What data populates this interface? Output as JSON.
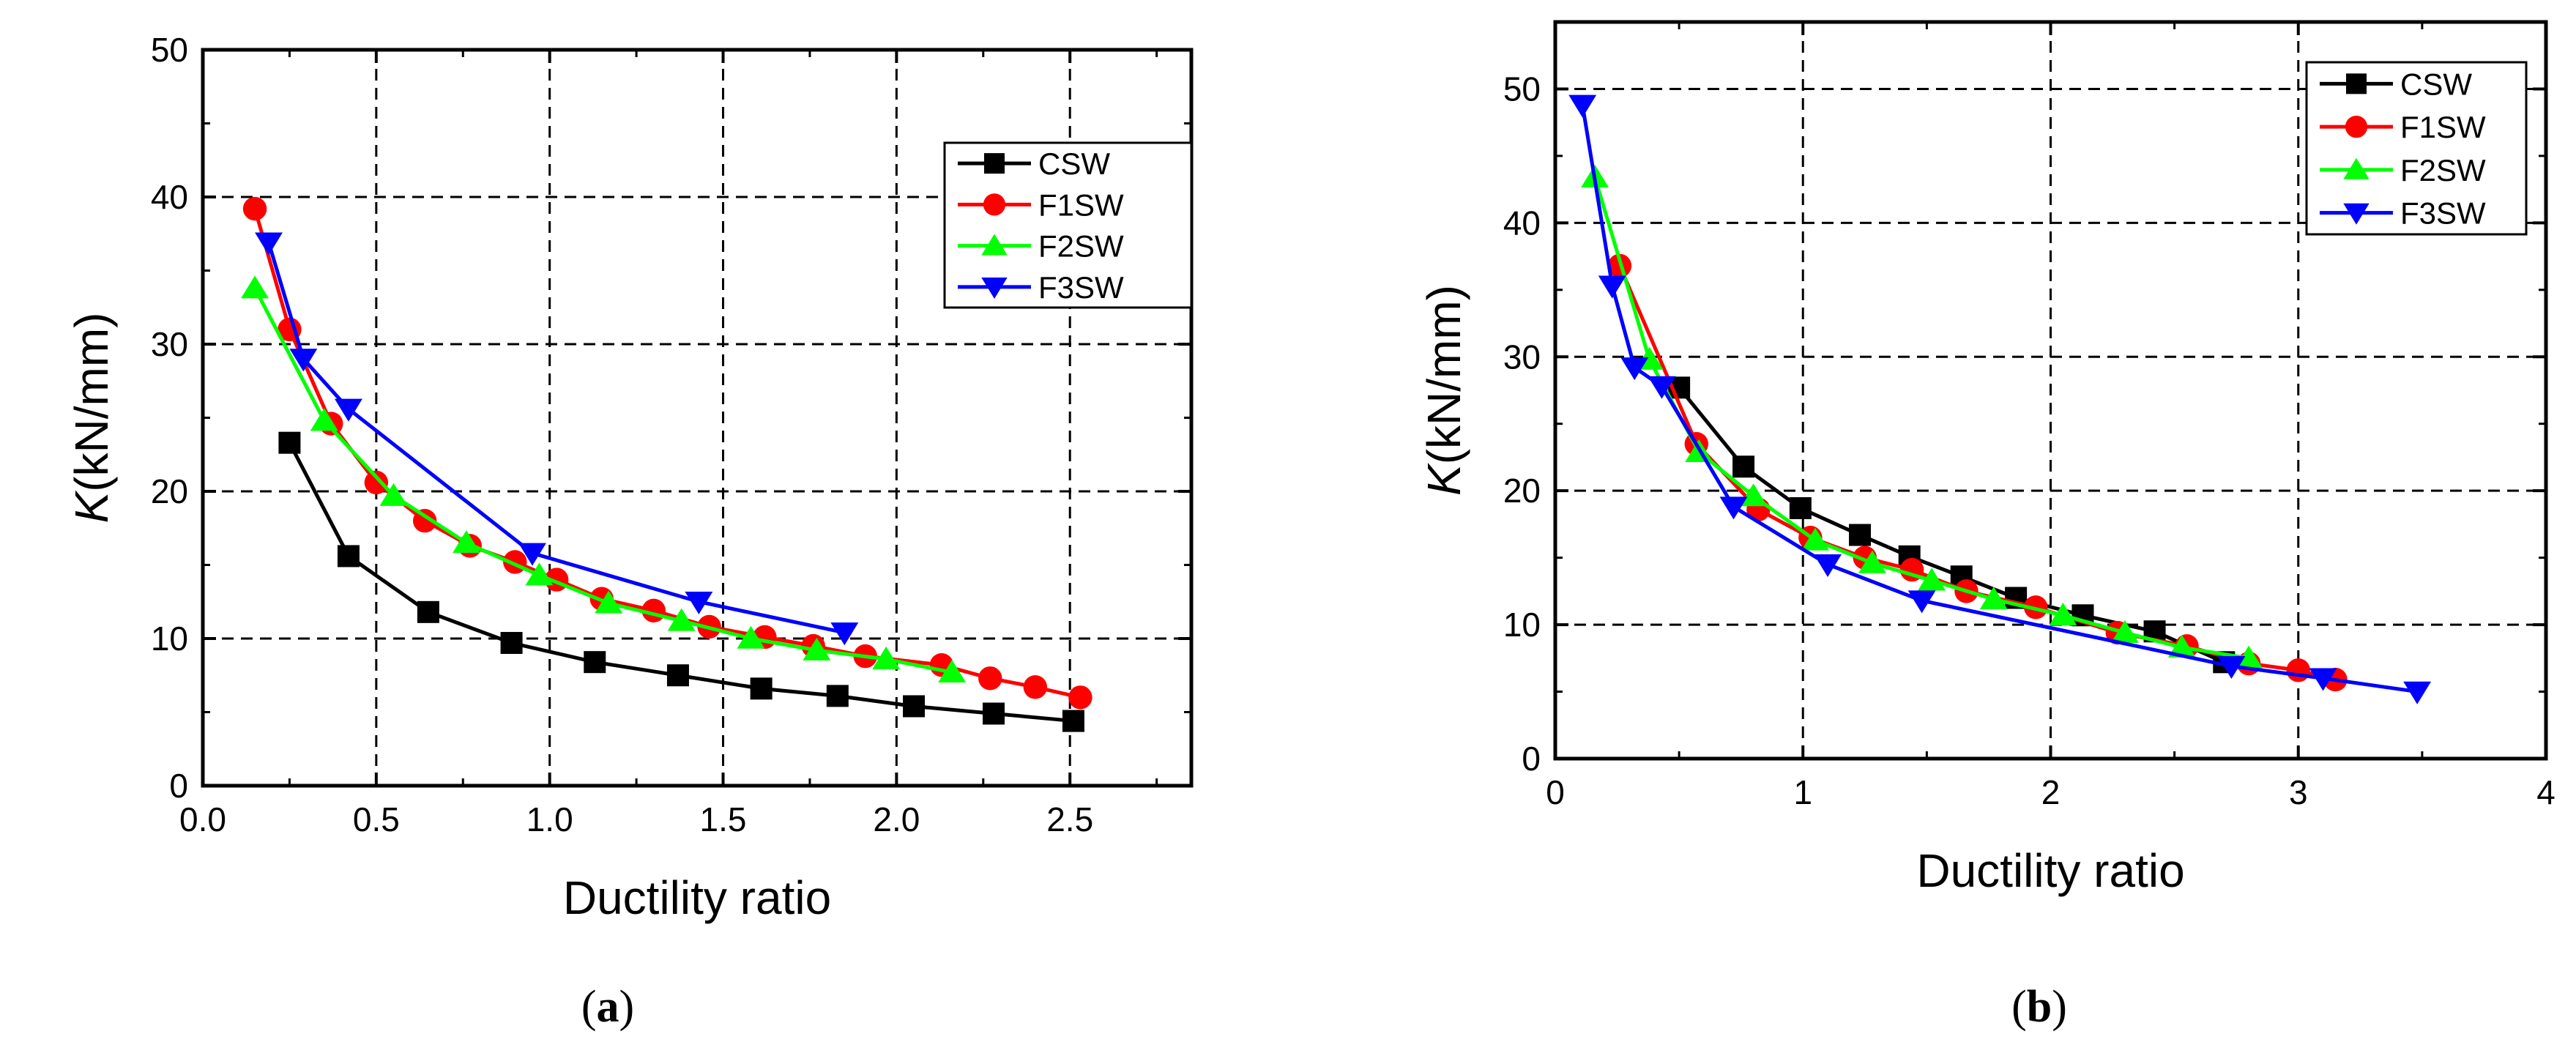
{
  "chart_data": [
    {
      "type": "line",
      "panel_label": "a",
      "xlabel": "Ductility ratio",
      "ylabel_italic": "K",
      "ylabel_rest": "(kN/mm)",
      "xlim": [
        0,
        2.85
      ],
      "ylim": [
        0,
        50
      ],
      "xticks": [
        "0.0",
        "0.5",
        "1.0",
        "1.5",
        "2.0",
        "2.5"
      ],
      "yticks": [
        "0",
        "10",
        "20",
        "30",
        "40",
        "50"
      ],
      "grid": true,
      "legend_position": "top-right",
      "series": [
        {
          "name": "CSW",
          "color": "#000000",
          "marker": "square",
          "x": [
            0.25,
            0.42,
            0.65,
            0.89,
            1.13,
            1.37,
            1.61,
            1.83,
            2.05,
            2.28,
            2.51
          ],
          "y": [
            23.3,
            15.6,
            11.8,
            9.7,
            8.4,
            7.5,
            6.6,
            6.1,
            5.4,
            4.9,
            4.4
          ]
        },
        {
          "name": "F1SW",
          "color": "#ff0000",
          "marker": "circle",
          "x": [
            0.15,
            0.25,
            0.37,
            0.5,
            0.64,
            0.77,
            0.9,
            1.02,
            1.15,
            1.3,
            1.46,
            1.62,
            1.76,
            1.91,
            2.13,
            2.27,
            2.4,
            2.53
          ],
          "y": [
            39.2,
            31.0,
            24.6,
            20.6,
            18.0,
            16.3,
            15.2,
            14.0,
            12.7,
            11.9,
            10.8,
            10.1,
            9.5,
            8.8,
            8.2,
            7.3,
            6.7,
            6.0
          ]
        },
        {
          "name": "F2SW",
          "color": "#00ff00",
          "marker": "triangle-up",
          "x": [
            0.15,
            0.35,
            0.55,
            0.76,
            0.97,
            1.17,
            1.38,
            1.58,
            1.77,
            1.97,
            2.16
          ],
          "y": [
            33.8,
            24.8,
            19.7,
            16.5,
            14.3,
            12.4,
            11.2,
            10.0,
            9.2,
            8.6,
            7.7
          ]
        },
        {
          "name": "F3SW",
          "color": "#0000ff",
          "marker": "triangle-down",
          "x": [
            0.19,
            0.29,
            0.42,
            0.95,
            1.43,
            1.85
          ],
          "y": [
            36.9,
            29.0,
            25.6,
            15.8,
            12.5,
            10.4
          ]
        }
      ]
    },
    {
      "type": "line",
      "panel_label": "b",
      "xlabel": "Ductility ratio",
      "ylabel_italic": "K",
      "ylabel_rest": "(kN/mm)",
      "xlim": [
        0,
        4
      ],
      "ylim": [
        0,
        55
      ],
      "xticks": [
        "0",
        "1",
        "2",
        "3",
        "4"
      ],
      "yticks": [
        "0",
        "10",
        "20",
        "30",
        "40",
        "50"
      ],
      "grid": true,
      "legend_position": "top-right",
      "series": [
        {
          "name": "CSW",
          "color": "#000000",
          "marker": "square",
          "x": [
            0.5,
            0.76,
            0.99,
            1.23,
            1.43,
            1.64,
            1.86,
            2.13,
            2.42,
            2.7
          ],
          "y": [
            27.7,
            21.8,
            18.7,
            16.7,
            15.1,
            13.6,
            12.0,
            10.7,
            9.5,
            7.2
          ]
        },
        {
          "name": "F1SW",
          "color": "#ff0000",
          "marker": "circle",
          "x": [
            0.26,
            0.57,
            0.82,
            1.03,
            1.25,
            1.44,
            1.66,
            1.94,
            2.27,
            2.55,
            2.8,
            3.0,
            3.15
          ],
          "y": [
            36.8,
            23.5,
            18.6,
            16.5,
            15.0,
            14.1,
            12.5,
            11.3,
            9.4,
            8.4,
            7.1,
            6.6,
            5.9
          ]
        },
        {
          "name": "F2SW",
          "color": "#00ff00",
          "marker": "triangle-up",
          "x": [
            0.16,
            0.38,
            0.58,
            0.8,
            1.05,
            1.28,
            1.52,
            1.77,
            2.05,
            2.3,
            2.53,
            2.8
          ],
          "y": [
            43.4,
            29.8,
            22.9,
            19.6,
            16.3,
            14.6,
            13.3,
            11.9,
            10.7,
            9.4,
            8.3,
            7.5
          ]
        },
        {
          "name": "F3SW",
          "color": "#0000ff",
          "marker": "triangle-down",
          "x": [
            0.11,
            0.23,
            0.32,
            0.43,
            0.72,
            1.1,
            1.48,
            2.73,
            3.1,
            3.48
          ],
          "y": [
            48.8,
            35.3,
            29.2,
            27.8,
            18.8,
            14.5,
            11.8,
            6.9,
            6.0,
            5.0
          ]
        }
      ]
    }
  ]
}
